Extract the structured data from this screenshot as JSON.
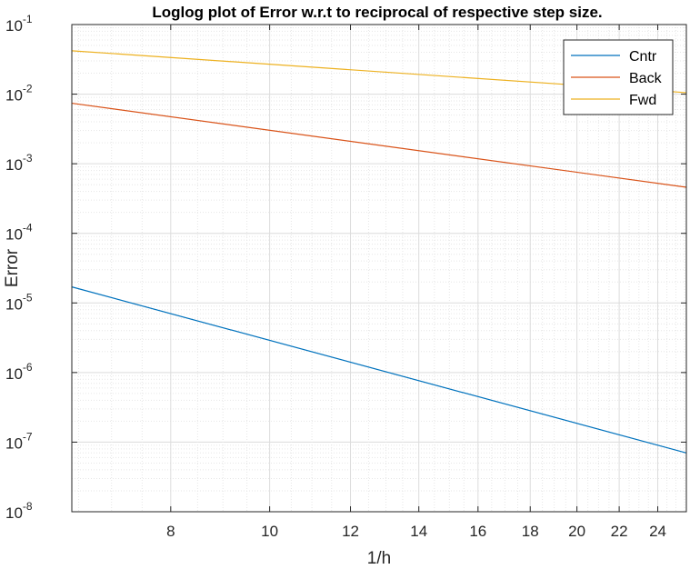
{
  "chart_data": {
    "type": "line",
    "scale": {
      "x": "log",
      "y": "log"
    },
    "title": "Loglog plot of Error w.r.t to reciprocal of respective step size.",
    "xlabel": "1/h",
    "ylabel": "Error",
    "xlim": [
      6.4,
      25.6
    ],
    "ylim": [
      1e-08,
      0.1
    ],
    "grid": true,
    "minor_grid": true,
    "legend_position": "top-right",
    "x_ticks": [
      {
        "value": 8,
        "label": "8"
      },
      {
        "value": 10,
        "label": "10"
      },
      {
        "value": 12,
        "label": "12"
      },
      {
        "value": 14,
        "label": "14"
      },
      {
        "value": 16,
        "label": "16"
      },
      {
        "value": 18,
        "label": "18"
      },
      {
        "value": 20,
        "label": "20"
      },
      {
        "value": 22,
        "label": "22"
      },
      {
        "value": 24,
        "label": "24"
      }
    ],
    "y_ticks": [
      {
        "value": 1e-08,
        "base": "10",
        "exp": "-8"
      },
      {
        "value": 1e-07,
        "base": "10",
        "exp": "-7"
      },
      {
        "value": 1e-06,
        "base": "10",
        "exp": "-6"
      },
      {
        "value": 1e-05,
        "base": "10",
        "exp": "-5"
      },
      {
        "value": 0.0001,
        "base": "10",
        "exp": "-4"
      },
      {
        "value": 0.001,
        "base": "10",
        "exp": "-3"
      },
      {
        "value": 0.01,
        "base": "10",
        "exp": "-2"
      },
      {
        "value": 0.1,
        "base": "10",
        "exp": "-1"
      }
    ],
    "series": [
      {
        "name": "Cntr",
        "color": "#0072BD",
        "x": [
          6.4,
          25.6
        ],
        "y": [
          1.7e-05,
          7e-08
        ]
      },
      {
        "name": "Back",
        "color": "#D95319",
        "x": [
          6.4,
          25.6
        ],
        "y": [
          0.0074,
          0.00046
        ]
      },
      {
        "name": "Fwd",
        "color": "#EDB120",
        "x": [
          6.4,
          25.6
        ],
        "y": [
          0.042,
          0.0105
        ]
      }
    ]
  }
}
